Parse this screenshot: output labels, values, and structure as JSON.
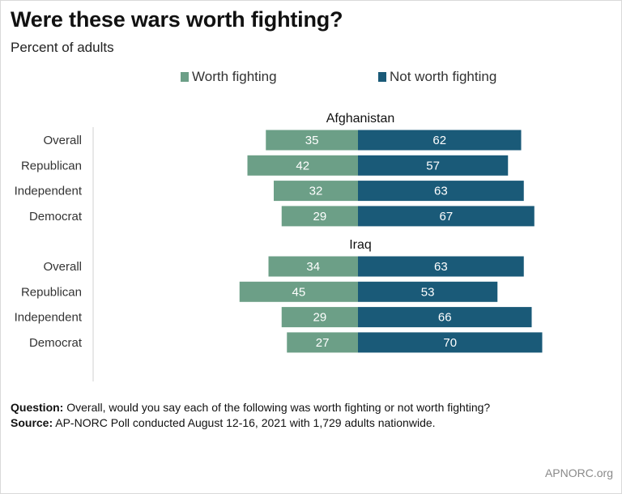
{
  "title": "Were these wars worth fighting?",
  "subtitle": "Percent of adults",
  "legend": {
    "worth": "Worth fighting",
    "not_worth": "Not worth fighting"
  },
  "colors": {
    "worth": "#6c9f87",
    "not_worth": "#1a5a78"
  },
  "chart_data": {
    "type": "bar",
    "orientation": "horizontal diverging",
    "series": [
      {
        "name": "Worth fighting",
        "color": "#6c9f87"
      },
      {
        "name": "Not worth fighting",
        "color": "#1a5a78"
      }
    ],
    "groups": [
      {
        "label": "Afghanistan",
        "rows": [
          {
            "label": "Overall",
            "worth": 35,
            "not_worth": 62
          },
          {
            "label": "Republican",
            "worth": 42,
            "not_worth": 57
          },
          {
            "label": "Independent",
            "worth": 32,
            "not_worth": 63
          },
          {
            "label": "Democrat",
            "worth": 29,
            "not_worth": 67
          }
        ]
      },
      {
        "label": "Iraq",
        "rows": [
          {
            "label": "Overall",
            "worth": 34,
            "not_worth": 63
          },
          {
            "label": "Republican",
            "worth": 45,
            "not_worth": 53
          },
          {
            "label": "Independent",
            "worth": 29,
            "not_worth": 66
          },
          {
            "label": "Democrat",
            "worth": 27,
            "not_worth": 70
          }
        ]
      }
    ]
  },
  "footer": {
    "question_label": "Question:",
    "question_text": " Overall, would you say each of the following was worth fighting or not worth fighting?",
    "source_label": "Source:",
    "source_text": " AP-NORC Poll conducted August 12-16, 2021 with 1,729 adults nationwide."
  },
  "credit": "APNORC.org"
}
